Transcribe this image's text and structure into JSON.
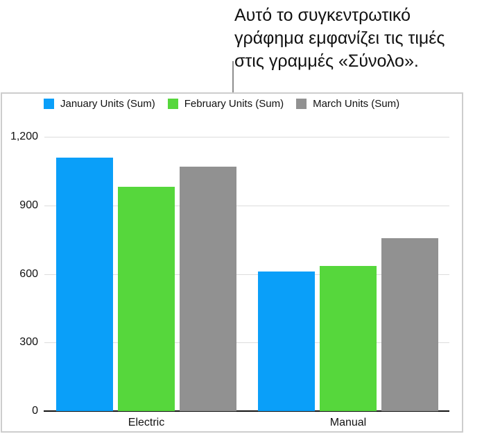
{
  "callout": {
    "lines": [
      "Αυτό το συγκεντρωτικό",
      "γράφημα εμφανίζει τις τιμές",
      "στις γραμμές «Σύνολο»."
    ]
  },
  "chart_data": {
    "type": "bar",
    "title": "",
    "categories": [
      "Electric",
      "Manual"
    ],
    "series": [
      {
        "name": "January Units (Sum)",
        "color": "#0a9ff9",
        "values": [
          1110,
          610
        ]
      },
      {
        "name": "February Units (Sum)",
        "color": "#56d73c",
        "values": [
          980,
          635
        ]
      },
      {
        "name": "March Units (Sum)",
        "color": "#919191",
        "values": [
          1070,
          755
        ]
      }
    ],
    "xlabel": "",
    "ylabel": "",
    "ylim": [
      0,
      1200
    ],
    "yticks": [
      0,
      300,
      600,
      900,
      1200
    ],
    "ytick_labels": [
      "0",
      "300",
      "600",
      "900",
      "1,200"
    ],
    "grid": true,
    "legend_position": "top-left"
  },
  "styles": {
    "grid_color": "#dddddd",
    "axis_color": "#111111",
    "panel_border_color": "#cdcdcd",
    "connector_color": "#8e8e8e",
    "text_color": "#111111"
  }
}
